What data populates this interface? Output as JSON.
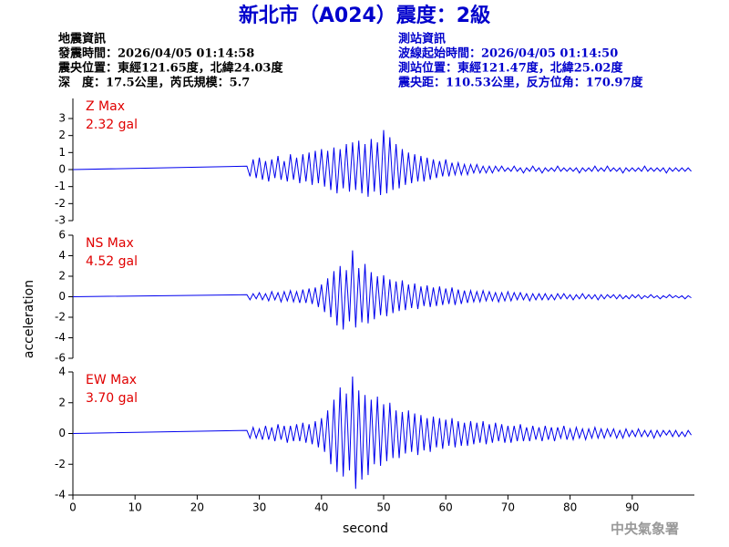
{
  "header": {
    "title": "新北市（A024）震度：2級",
    "left": [
      "地震資訊",
      "發震時間：2026/04/05 01:14:58",
      "震央位置：東經121.65度，北緯24.03度",
      "深　度：17.5公里，芮氏規模：5.7"
    ],
    "right": [
      "測站資訊",
      "波線起始時間：2026/04/05 01:14:50",
      "測站位置：東經121.47度，北緯25.02度",
      "震央距：110.53公里，反方位角：170.97度"
    ]
  },
  "x_label": "second",
  "y_label": "acceleration",
  "watermark": "中央氣象署",
  "chart_data": [
    {
      "type": "line",
      "label": "Z Max",
      "max_label": "2.32 gal",
      "color": "#0000ee",
      "xlim": [
        0,
        100
      ],
      "ylim": [
        -3,
        3
      ],
      "yticks": [
        -3,
        -2,
        -1,
        0,
        1,
        2,
        3
      ],
      "x": [
        0,
        28,
        28.5,
        29,
        29.5,
        30,
        30.5,
        31,
        31.5,
        32,
        32.5,
        33,
        33.5,
        34,
        34.5,
        35,
        35.5,
        36,
        36.5,
        37,
        37.5,
        38,
        38.5,
        39,
        39.5,
        40,
        40.5,
        41,
        41.5,
        42,
        42.5,
        43,
        43.5,
        44,
        44.5,
        45,
        45.5,
        46,
        46.5,
        47,
        47.5,
        48,
        48.5,
        49,
        49.5,
        50,
        50.5,
        51,
        51.5,
        52,
        52.5,
        53,
        53.5,
        54,
        54.5,
        55,
        55.5,
        56,
        56.5,
        57,
        57.5,
        58,
        58.5,
        59,
        59.5,
        60,
        60.5,
        61,
        61.5,
        62,
        62.5,
        63,
        63.5,
        64,
        64.5,
        65,
        65.5,
        66,
        66.5,
        67,
        67.5,
        68,
        68.5,
        69,
        69.5,
        70,
        70.5,
        71,
        71.5,
        72,
        72.5,
        73,
        73.5,
        74,
        74.5,
        75,
        75.5,
        76,
        76.5,
        77,
        77.5,
        78,
        78.5,
        79,
        79.5,
        80,
        80.5,
        81,
        81.5,
        82,
        82.5,
        83,
        83.5,
        84,
        84.5,
        85,
        85.5,
        86,
        86.5,
        87,
        87.5,
        88,
        88.5,
        89,
        89.5,
        90,
        90.5,
        91,
        91.5,
        92,
        92.5,
        93,
        93.5,
        94,
        94.5,
        95,
        95.5,
        96,
        96.5,
        97,
        97.5,
        98,
        98.5,
        99,
        99.5
      ],
      "values": [
        0,
        0.2,
        -0.4,
        0.6,
        -0.5,
        0.7,
        -0.6,
        0.5,
        -0.7,
        0.6,
        -0.5,
        0.8,
        -0.6,
        0.5,
        -0.7,
        0.9,
        -0.6,
        0.7,
        -0.8,
        0.9,
        -0.7,
        1.0,
        -0.9,
        1.1,
        -0.8,
        1.2,
        -1.0,
        1.1,
        -1.2,
        1.3,
        -1.4,
        1.2,
        -1.1,
        1.5,
        -1.3,
        1.6,
        -1.2,
        1.7,
        -1.4,
        1.5,
        -1.6,
        1.8,
        -1.3,
        1.6,
        -1.5,
        2.32,
        -1.4,
        1.9,
        -1.2,
        1.5,
        -1.1,
        1.2,
        -0.9,
        1.0,
        -0.8,
        0.9,
        -0.7,
        0.8,
        -0.7,
        0.7,
        -0.6,
        0.6,
        -0.5,
        0.5,
        -0.4,
        0.6,
        -0.4,
        0.4,
        -0.3,
        0.4,
        -0.3,
        0.3,
        -0.3,
        0.3,
        -0.2,
        0.3,
        -0.2,
        0.2,
        -0.2,
        0.2,
        -0.2,
        0.2,
        -0.1,
        0.2,
        -0.1,
        0.1,
        -0.1,
        0.2,
        -0.1,
        0.1,
        -0.2,
        0.1,
        -0.1,
        0.2,
        -0.1,
        0.1,
        -0.2,
        0.1,
        -0.1,
        0.1,
        -0.1,
        0.2,
        -0.1,
        0.1,
        -0.1,
        0.1,
        -0.1,
        0.1,
        -0.2,
        0.1,
        -0.1,
        0.1,
        -0.1,
        0.2,
        -0.1,
        0.1,
        -0.1,
        0.2,
        -0.1,
        0.1,
        -0.1,
        0.1,
        -0.2,
        0.1,
        -0.1,
        0.1,
        -0.1,
        0.1,
        -0.1,
        0.2,
        -0.1,
        0.1,
        -0.1,
        0.1,
        -0.1,
        0.1,
        -0.2,
        0.1,
        -0.1,
        0.1,
        -0.1,
        0.1,
        -0.1,
        0.1,
        -0.1
      ]
    },
    {
      "type": "line",
      "label": "NS Max",
      "max_label": "4.52 gal",
      "color": "#0000ee",
      "xlim": [
        0,
        100
      ],
      "ylim": [
        -6,
        6
      ],
      "yticks": [
        -6,
        -4,
        -2,
        0,
        2,
        4,
        6
      ],
      "x": [
        0,
        28,
        28.5,
        29,
        29.5,
        30,
        30.5,
        31,
        31.5,
        32,
        32.5,
        33,
        33.5,
        34,
        34.5,
        35,
        35.5,
        36,
        36.5,
        37,
        37.5,
        38,
        38.5,
        39,
        39.5,
        40,
        40.5,
        41,
        41.5,
        42,
        42.5,
        43,
        43.5,
        44,
        44.5,
        45,
        45.5,
        46,
        46.5,
        47,
        47.5,
        48,
        48.5,
        49,
        49.5,
        50,
        50.5,
        51,
        51.5,
        52,
        52.5,
        53,
        53.5,
        54,
        54.5,
        55,
        55.5,
        56,
        56.5,
        57,
        57.5,
        58,
        58.5,
        59,
        59.5,
        60,
        60.5,
        61,
        61.5,
        62,
        62.5,
        63,
        63.5,
        64,
        64.5,
        65,
        65.5,
        66,
        66.5,
        67,
        67.5,
        68,
        68.5,
        69,
        69.5,
        70,
        70.5,
        71,
        71.5,
        72,
        72.5,
        73,
        73.5,
        74,
        74.5,
        75,
        75.5,
        76,
        76.5,
        77,
        77.5,
        78,
        78.5,
        79,
        79.5,
        80,
        80.5,
        81,
        81.5,
        82,
        82.5,
        83,
        83.5,
        84,
        84.5,
        85,
        85.5,
        86,
        86.5,
        87,
        87.5,
        88,
        88.5,
        89,
        89.5,
        90,
        90.5,
        91,
        91.5,
        92,
        92.5,
        93,
        93.5,
        94,
        94.5,
        95,
        95.5,
        96,
        96.5,
        97,
        97.5,
        98,
        98.5,
        99,
        99.5
      ],
      "values": [
        0,
        0.2,
        -0.3,
        0.3,
        -0.2,
        0.4,
        -0.3,
        0.3,
        -0.4,
        0.5,
        -0.3,
        0.4,
        -0.5,
        0.5,
        -0.4,
        0.6,
        -0.5,
        0.5,
        -0.6,
        0.7,
        -0.6,
        0.8,
        -0.7,
        0.9,
        -1.0,
        1.2,
        -1.5,
        1.8,
        -2.0,
        2.5,
        -2.8,
        3.0,
        -3.2,
        2.6,
        -2.4,
        4.52,
        -3.0,
        2.8,
        -2.5,
        3.2,
        -2.6,
        2.4,
        -2.2,
        2.0,
        -1.8,
        2.1,
        -1.9,
        1.7,
        -1.6,
        1.5,
        -1.4,
        1.6,
        -1.3,
        1.2,
        -1.1,
        1.3,
        -1.2,
        1.0,
        -0.9,
        1.1,
        -1.0,
        0.9,
        -0.9,
        1.0,
        -0.8,
        0.8,
        -0.7,
        0.9,
        -0.8,
        0.7,
        -0.7,
        0.6,
        -0.6,
        0.6,
        -0.5,
        0.5,
        -0.5,
        0.6,
        -0.4,
        0.5,
        -0.4,
        0.4,
        -0.5,
        0.4,
        -0.4,
        0.5,
        -0.4,
        0.4,
        -0.3,
        0.4,
        -0.3,
        0.3,
        -0.4,
        0.3,
        -0.3,
        0.3,
        -0.3,
        0.3,
        -0.3,
        0.2,
        -0.3,
        0.3,
        -0.2,
        0.3,
        -0.2,
        0.2,
        -0.3,
        0.2,
        -0.2,
        0.3,
        -0.2,
        0.2,
        -0.2,
        0.2,
        -0.3,
        0.2,
        -0.2,
        0.2,
        -0.1,
        0.2,
        -0.2,
        0.2,
        -0.2,
        0.1,
        -0.2,
        0.2,
        -0.1,
        0.2,
        -0.2,
        0.1,
        -0.1,
        0.2,
        -0.1,
        0.1,
        -0.2,
        0.1,
        -0.1,
        0.2,
        -0.1,
        0.1,
        -0.1,
        0.1,
        -0.2,
        0.1,
        -0.1
      ]
    },
    {
      "type": "line",
      "label": "EW Max",
      "max_label": "3.70 gal",
      "color": "#0000ee",
      "xlim": [
        0,
        100
      ],
      "xticks": [
        0,
        10,
        20,
        30,
        40,
        50,
        60,
        70,
        80,
        90
      ],
      "ylim": [
        -4,
        4
      ],
      "yticks": [
        -4,
        -2,
        0,
        2,
        4
      ],
      "x": [
        0,
        28,
        28.5,
        29,
        29.5,
        30,
        30.5,
        31,
        31.5,
        32,
        32.5,
        33,
        33.5,
        34,
        34.5,
        35,
        35.5,
        36,
        36.5,
        37,
        37.5,
        38,
        38.5,
        39,
        39.5,
        40,
        40.5,
        41,
        41.5,
        42,
        42.5,
        43,
        43.5,
        44,
        44.5,
        45,
        45.5,
        46,
        46.5,
        47,
        47.5,
        48,
        48.5,
        49,
        49.5,
        50,
        50.5,
        51,
        51.5,
        52,
        52.5,
        53,
        53.5,
        54,
        54.5,
        55,
        55.5,
        56,
        56.5,
        57,
        57.5,
        58,
        58.5,
        59,
        59.5,
        60,
        60.5,
        61,
        61.5,
        62,
        62.5,
        63,
        63.5,
        64,
        64.5,
        65,
        65.5,
        66,
        66.5,
        67,
        67.5,
        68,
        68.5,
        69,
        69.5,
        70,
        70.5,
        71,
        71.5,
        72,
        72.5,
        73,
        73.5,
        74,
        74.5,
        75,
        75.5,
        76,
        76.5,
        77,
        77.5,
        78,
        78.5,
        79,
        79.5,
        80,
        80.5,
        81,
        81.5,
        82,
        82.5,
        83,
        83.5,
        84,
        84.5,
        85,
        85.5,
        86,
        86.5,
        87,
        87.5,
        88,
        88.5,
        89,
        89.5,
        90,
        90.5,
        91,
        91.5,
        92,
        92.5,
        93,
        93.5,
        94,
        94.5,
        95,
        95.5,
        96,
        96.5,
        97,
        97.5,
        98,
        98.5,
        99,
        99.5
      ],
      "values": [
        0,
        0.2,
        -0.3,
        0.4,
        -0.3,
        0.3,
        -0.4,
        0.5,
        -0.4,
        0.4,
        -0.5,
        0.6,
        -0.4,
        0.5,
        -0.6,
        0.5,
        -0.5,
        0.6,
        -0.5,
        0.7,
        -0.6,
        0.6,
        -0.7,
        0.8,
        -0.9,
        1.0,
        -1.2,
        1.5,
        -2.0,
        2.2,
        -2.5,
        3.0,
        -2.8,
        2.6,
        -2.4,
        3.7,
        -3.6,
        2.8,
        -3.0,
        2.5,
        -2.7,
        2.2,
        -2.0,
        2.4,
        -2.1,
        1.9,
        -1.8,
        2.0,
        -1.6,
        1.5,
        -1.6,
        1.4,
        -1.3,
        1.5,
        -1.2,
        1.3,
        -1.4,
        1.2,
        -1.1,
        1.0,
        -1.2,
        1.1,
        -0.9,
        1.0,
        -1.0,
        0.9,
        -0.8,
        1.0,
        -0.9,
        0.8,
        -0.8,
        0.7,
        -0.8,
        0.8,
        -0.7,
        0.7,
        -0.6,
        0.8,
        -0.7,
        0.6,
        -0.6,
        0.7,
        -0.5,
        0.6,
        -0.6,
        0.5,
        -0.6,
        0.5,
        -0.5,
        0.6,
        -0.5,
        0.4,
        -0.5,
        0.5,
        -0.4,
        0.4,
        -0.5,
        0.5,
        -0.4,
        0.4,
        -0.5,
        0.4,
        -0.3,
        0.5,
        -0.4,
        0.3,
        -0.4,
        0.4,
        -0.3,
        0.3,
        -0.4,
        0.3,
        -0.3,
        0.4,
        -0.3,
        0.3,
        -0.3,
        0.3,
        -0.2,
        0.3,
        -0.3,
        0.2,
        -0.3,
        0.3,
        -0.2,
        0.2,
        -0.2,
        0.3,
        -0.2,
        0.2,
        -0.2,
        0.2,
        -0.3,
        0.2,
        -0.2,
        0.2,
        -0.1,
        0.2,
        -0.2,
        0.2,
        -0.2,
        0.1,
        -0.2,
        0.2,
        -0.1
      ]
    }
  ]
}
